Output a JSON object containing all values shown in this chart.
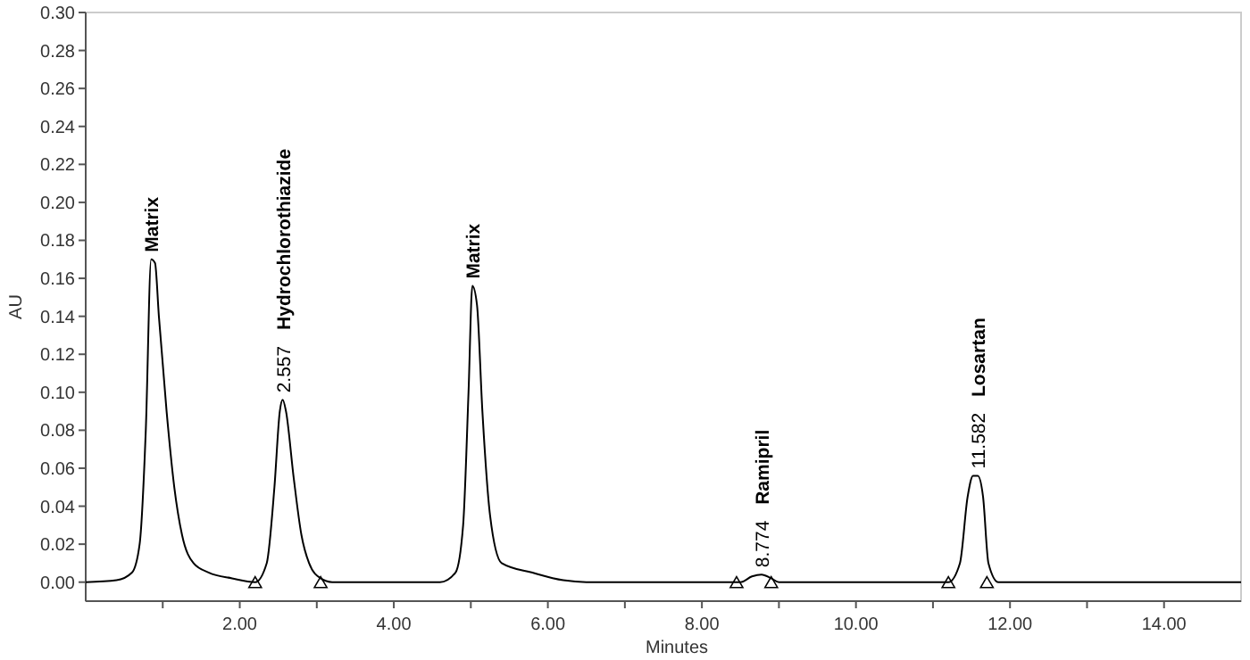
{
  "chart_data": {
    "type": "line",
    "xlabel": "Minutes",
    "ylabel": "AU",
    "xlim": [
      0,
      15
    ],
    "ylim": [
      -0.01,
      0.3
    ],
    "xticks": [
      {
        "value": 1,
        "label": null
      },
      {
        "value": 2,
        "label": "2.00"
      },
      {
        "value": 3,
        "label": null
      },
      {
        "value": 4,
        "label": "4.00"
      },
      {
        "value": 5,
        "label": null
      },
      {
        "value": 6,
        "label": "6.00"
      },
      {
        "value": 7,
        "label": null
      },
      {
        "value": 8,
        "label": "8.00"
      },
      {
        "value": 9,
        "label": null
      },
      {
        "value": 10,
        "label": "10.00"
      },
      {
        "value": 11,
        "label": null
      },
      {
        "value": 12,
        "label": "12.00"
      },
      {
        "value": 13,
        "label": null
      },
      {
        "value": 14,
        "label": "14.00"
      }
    ],
    "yticks": [
      {
        "value": 0,
        "label": "0.00"
      },
      {
        "value": 0.02,
        "label": "0.02"
      },
      {
        "value": 0.04,
        "label": "0.04"
      },
      {
        "value": 0.06,
        "label": "0.06"
      },
      {
        "value": 0.08,
        "label": "0.08"
      },
      {
        "value": 0.1,
        "label": "0.10"
      },
      {
        "value": 0.12,
        "label": "0.12"
      },
      {
        "value": 0.14,
        "label": "0.14"
      },
      {
        "value": 0.16,
        "label": "0.16"
      },
      {
        "value": 0.18,
        "label": "0.18"
      },
      {
        "value": 0.2,
        "label": "0.20"
      },
      {
        "value": 0.22,
        "label": "0.22"
      },
      {
        "value": 0.24,
        "label": "0.24"
      },
      {
        "value": 0.26,
        "label": "0.26"
      },
      {
        "value": 0.28,
        "label": "0.28"
      },
      {
        "value": 0.3,
        "label": "0.30"
      }
    ],
    "grid": false,
    "series": [
      {
        "color": "#000000",
        "x": [
          0,
          0.4,
          0.6,
          0.7,
          0.78,
          0.85,
          0.9,
          0.95,
          1.05,
          1.15,
          1.25,
          1.4,
          1.6,
          1.9,
          2.2,
          2.35,
          2.45,
          2.52,
          2.557,
          2.6,
          2.7,
          2.8,
          2.9,
          3.05,
          3.2,
          4.6,
          4.8,
          4.9,
          4.97,
          5.02,
          5.08,
          5.15,
          5.25,
          5.4,
          5.8,
          6.2,
          6.5,
          8.5,
          8.65,
          8.774,
          8.9,
          9.0,
          11.2,
          11.35,
          11.45,
          11.52,
          11.582,
          11.65,
          11.72,
          11.85,
          15
        ],
        "values": [
          0,
          0.001,
          0.005,
          0.02,
          0.08,
          0.17,
          0.168,
          0.14,
          0.09,
          0.05,
          0.025,
          0.01,
          0.005,
          0.002,
          0,
          0.01,
          0.05,
          0.09,
          0.096,
          0.09,
          0.055,
          0.025,
          0.01,
          0.002,
          0,
          0,
          0.005,
          0.03,
          0.1,
          0.156,
          0.146,
          0.09,
          0.035,
          0.01,
          0.005,
          0.001,
          0,
          0,
          0.003,
          0.004,
          0.002,
          0,
          0,
          0.01,
          0.045,
          0.056,
          0.056,
          0.045,
          0.01,
          0,
          0
        ]
      },
      {
        "type": "scatter",
        "marker": "triangle",
        "color": "#000000",
        "x": [
          2.2,
          3.05,
          8.45,
          8.9,
          11.2,
          11.7
        ],
        "values": [
          0,
          0,
          0,
          0,
          0,
          0
        ]
      }
    ],
    "annotations": [
      {
        "text": "Matrix",
        "x": 0.85,
        "y": 0.17
      },
      {
        "text": "2.557 Hydrochlorothiazide",
        "x": 2.557,
        "y": 0.096
      },
      {
        "text": "Matrix",
        "x": 5.02,
        "y": 0.156
      },
      {
        "text": "8.774 Ramipril",
        "x": 8.774,
        "y": 0.004
      },
      {
        "text": "11.582 Losartan",
        "x": 11.582,
        "y": 0.056
      }
    ]
  }
}
